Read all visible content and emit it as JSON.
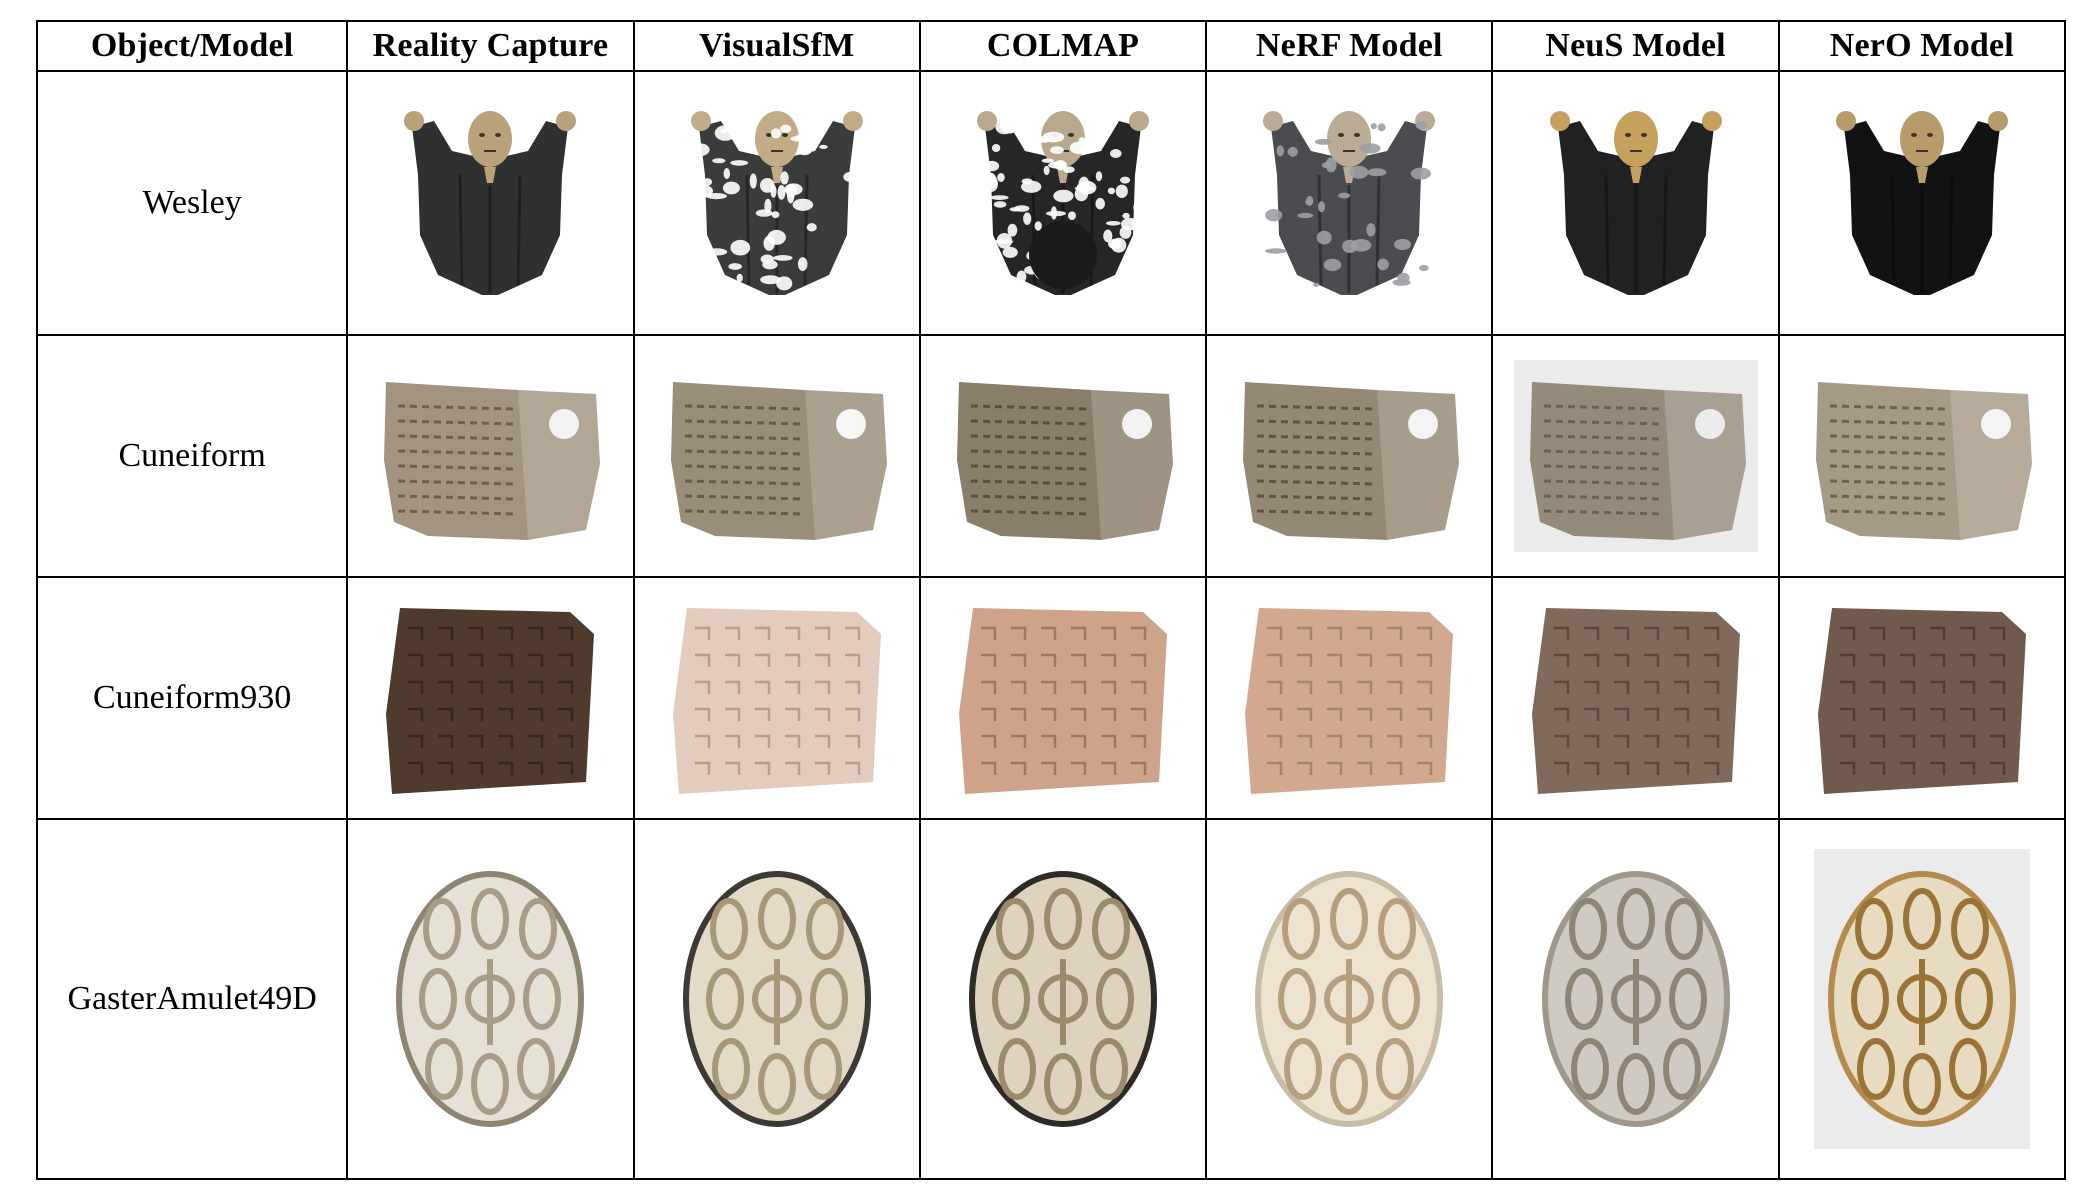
{
  "headers": [
    "Object/Model",
    "Reality Capture",
    "VisualSfM",
    "COLMAP",
    "NeRF Model",
    "NeuS Model",
    "NerO Model"
  ],
  "rows": [
    {
      "name": "Wesley",
      "variants": [
        {
          "cloth": "#2f3131",
          "gold": "#b9a27a",
          "noise": "none"
        },
        {
          "cloth": "#3a3c3c",
          "gold": "#c2ac88",
          "noise": "patchy"
        },
        {
          "cloth": "#262626",
          "gold": "#b8a98c",
          "noise": "heavy"
        },
        {
          "cloth": "#4a4c4f",
          "gold": "#b9ab96",
          "noise": "gray"
        },
        {
          "cloth": "#1f2123",
          "gold": "#c6a05d",
          "noise": "none"
        },
        {
          "cloth": "#111213",
          "gold": "#b99a6a",
          "noise": "none"
        }
      ]
    },
    {
      "name": "Cuneiform",
      "variants": [
        {
          "body": "#a29480",
          "dark": "#6c604f",
          "spot": "#f2f2f2",
          "bg": ""
        },
        {
          "body": "#9a8d79",
          "dark": "#675b4b",
          "spot": "#f6f6f6",
          "bg": ""
        },
        {
          "body": "#8a7d6a",
          "dark": "#5a4f40",
          "spot": "#f3f3f3",
          "bg": ""
        },
        {
          "body": "#958874",
          "dark": "#5f5444",
          "spot": "#f4f4f4",
          "bg": ""
        },
        {
          "body": "#958b7a",
          "dark": "#6c6252",
          "spot": "#ececec",
          "bg": "#ebebeb"
        },
        {
          "body": "#a69985",
          "dark": "#6d6150",
          "spot": "#f5f5f5",
          "bg": ""
        }
      ]
    },
    {
      "name": "Cuneiform930",
      "variants": [
        {
          "body": "#4f3a2e",
          "dark": "#2e2019",
          "bg": ""
        },
        {
          "body": "#e3cbbd",
          "dark": "#a98f83",
          "bg": ""
        },
        {
          "body": "#cfa38a",
          "dark": "#8b6a5a",
          "bg": ""
        },
        {
          "body": "#d2a98f",
          "dark": "#9a7765",
          "bg": ""
        },
        {
          "body": "#7f6a5b",
          "dark": "#4f3f34",
          "bg": ""
        },
        {
          "body": "#6f5a4d",
          "dark": "#43342b",
          "bg": ""
        }
      ]
    },
    {
      "name": "GasterAmulet49D",
      "variants": [
        {
          "body": "#e6e1d6",
          "line": "#a89c86",
          "edge": "#8e8472",
          "bg": ""
        },
        {
          "body": "#e3dbc8",
          "line": "#a9977a",
          "edge": "#3d3a35",
          "bg": ""
        },
        {
          "body": "#ddd3be",
          "line": "#9c8a6c",
          "edge": "#2e2b27",
          "bg": ""
        },
        {
          "body": "#ece3d1",
          "line": "#b59f7e",
          "edge": "#c9bca4",
          "bg": ""
        },
        {
          "body": "#cfcbc2",
          "line": "#8d8576",
          "edge": "#9f988a",
          "bg": ""
        },
        {
          "body": "#e7dcc2",
          "line": "#9a7436",
          "edge": "#b38c4d",
          "bg": "#ebebeb"
        }
      ]
    }
  ]
}
